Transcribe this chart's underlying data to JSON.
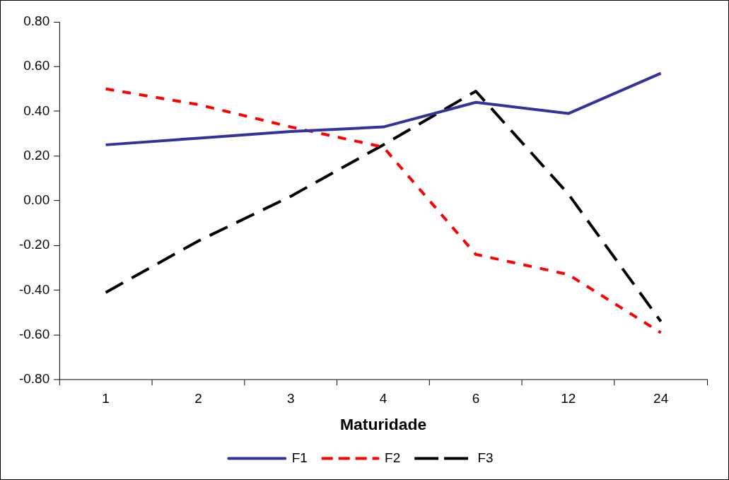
{
  "chart_data": {
    "type": "line",
    "xlabel": "Maturidade",
    "categories": [
      "1",
      "2",
      "3",
      "4",
      "6",
      "12",
      "24"
    ],
    "series": [
      {
        "name": "F1",
        "color": "#333399",
        "line_style": "solid",
        "values": [
          0.25,
          0.28,
          0.31,
          0.33,
          0.44,
          0.39,
          0.57
        ]
      },
      {
        "name": "F2",
        "color": "#ff0000",
        "line_style": "dashed",
        "values": [
          0.5,
          0.43,
          0.33,
          0.24,
          -0.24,
          -0.33,
          -0.59
        ]
      },
      {
        "name": "F3",
        "color": "#000000",
        "line_style": "dashed",
        "values": [
          -0.41,
          -0.18,
          0.02,
          0.25,
          0.49,
          0.03,
          -0.54
        ]
      }
    ],
    "ylim": [
      -0.8,
      0.8
    ],
    "yticks": [
      {
        "value": -0.8,
        "label": "-0.80"
      },
      {
        "value": -0.6,
        "label": "-0.60"
      },
      {
        "value": -0.4,
        "label": "-0.40"
      },
      {
        "value": -0.2,
        "label": "-0.20"
      },
      {
        "value": 0,
        "label": "0.00"
      },
      {
        "value": 0.2,
        "label": "0.20"
      },
      {
        "value": 0.4,
        "label": "0.40"
      },
      {
        "value": 0.6,
        "label": "0.60"
      },
      {
        "value": 0.8,
        "label": "0.80"
      }
    ],
    "grid": false,
    "legend": "bottom",
    "marker": "none"
  }
}
